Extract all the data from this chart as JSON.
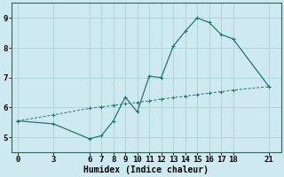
{
  "xlabel": "Humidex (Indice chaleur)",
  "bg_color": "#ceeaf0",
  "grid_color": "#b0d4da",
  "line_color": "#1a7a6e",
  "curve1_x": [
    0,
    3,
    6,
    7,
    8,
    9,
    10,
    11,
    12,
    13,
    14,
    15,
    16,
    17,
    18,
    21
  ],
  "curve1_y": [
    5.55,
    5.45,
    4.95,
    5.05,
    5.55,
    6.35,
    5.85,
    7.05,
    7.0,
    8.05,
    8.55,
    9.0,
    8.85,
    8.45,
    8.3,
    6.7
  ],
  "curve2_x": [
    0,
    3,
    6,
    7,
    8,
    9,
    10,
    11,
    12,
    13,
    14,
    15,
    16,
    17,
    18,
    21
  ],
  "curve2_y": [
    5.55,
    5.75,
    5.97,
    6.02,
    6.07,
    6.12,
    6.17,
    6.22,
    6.28,
    6.33,
    6.38,
    6.43,
    6.48,
    6.53,
    6.58,
    6.7
  ],
  "xlim": [
    -0.5,
    22
  ],
  "ylim": [
    4.5,
    9.5
  ],
  "xticks": [
    0,
    3,
    6,
    7,
    8,
    9,
    10,
    11,
    12,
    13,
    14,
    15,
    16,
    17,
    18,
    21
  ],
  "yticks": [
    5,
    6,
    7,
    8,
    9
  ],
  "xlabel_fontsize": 7,
  "tick_fontsize": 6.5
}
